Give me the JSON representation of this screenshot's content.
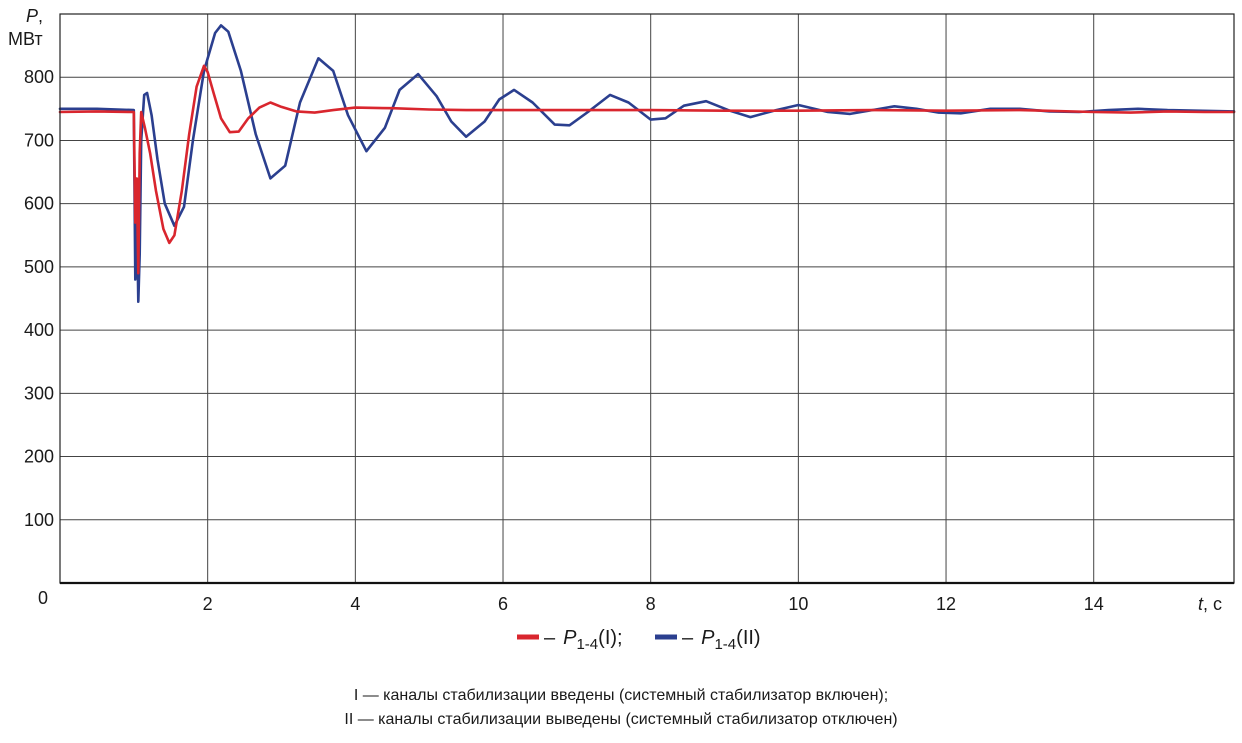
{
  "chart_data": {
    "type": "line",
    "xlabel_italic": "t",
    "xlabel_unit": ", с",
    "ylabel_italic": "P",
    "ylabel_comma": ",",
    "ylabel_unit": "МВт",
    "xlim": [
      0,
      15.9
    ],
    "ylim": [
      0,
      900
    ],
    "x_ticks": [
      0,
      2,
      4,
      6,
      8,
      10,
      12,
      14
    ],
    "y_ticks": [
      100,
      200,
      300,
      400,
      500,
      600,
      700,
      800
    ],
    "origin_label": "0",
    "grid": true,
    "series": [
      {
        "key": "I",
        "name": "P1-4(I)",
        "color": "#d9262e",
        "x": [
          0,
          0.5,
          1.0,
          1.02,
          1.04,
          1.06,
          1.08,
          1.1,
          1.15,
          1.22,
          1.3,
          1.4,
          1.48,
          1.55,
          1.65,
          1.75,
          1.85,
          1.95,
          2.0,
          2.08,
          2.18,
          2.3,
          2.42,
          2.55,
          2.7,
          2.85,
          3.0,
          3.2,
          3.45,
          3.7,
          4.0,
          4.5,
          5.0,
          5.5,
          6.0,
          7.0,
          8.0,
          9.0,
          10.0,
          11.0,
          12.0,
          13.0,
          14.0,
          14.5,
          15.0,
          15.5,
          15.9
        ],
        "y": [
          745,
          746,
          745,
          570,
          640,
          490,
          680,
          745,
          720,
          680,
          620,
          560,
          538,
          550,
          620,
          710,
          785,
          818,
          808,
          775,
          735,
          713,
          714,
          735,
          752,
          760,
          753,
          746,
          744,
          748,
          752,
          751,
          749,
          748,
          748,
          748,
          748,
          747,
          747,
          748,
          747,
          748,
          745,
          744,
          746,
          745,
          745
        ]
      },
      {
        "key": "II",
        "name": "P1-4(II)",
        "color": "#2b3f8f",
        "x": [
          0,
          0.5,
          1.0,
          1.02,
          1.04,
          1.06,
          1.08,
          1.1,
          1.14,
          1.18,
          1.24,
          1.32,
          1.42,
          1.55,
          1.68,
          1.8,
          1.95,
          2.1,
          2.18,
          2.28,
          2.45,
          2.65,
          2.85,
          3.05,
          3.25,
          3.5,
          3.7,
          3.9,
          4.15,
          4.4,
          4.6,
          4.85,
          5.1,
          5.3,
          5.5,
          5.75,
          5.95,
          6.15,
          6.4,
          6.7,
          6.9,
          7.15,
          7.45,
          7.7,
          8.0,
          8.2,
          8.45,
          8.75,
          9.05,
          9.35,
          9.7,
          10.0,
          10.4,
          10.7,
          11.0,
          11.3,
          11.6,
          11.9,
          12.2,
          12.6,
          13.0,
          13.4,
          13.8,
          14.2,
          14.6,
          15.0,
          15.4,
          15.9
        ],
        "y": [
          750,
          750,
          748,
          480,
          600,
          445,
          520,
          700,
          772,
          775,
          740,
          670,
          600,
          565,
          595,
          700,
          810,
          870,
          882,
          872,
          810,
          710,
          640,
          660,
          760,
          830,
          810,
          740,
          683,
          720,
          780,
          805,
          770,
          730,
          706,
          730,
          765,
          780,
          760,
          725,
          724,
          745,
          772,
          760,
          733,
          735,
          755,
          762,
          748,
          737,
          748,
          756,
          745,
          742,
          748,
          754,
          750,
          744,
          743,
          750,
          750,
          746,
          745,
          748,
          750,
          748,
          747,
          746
        ]
      }
    ]
  },
  "legend": {
    "dash": "–",
    "p_letter": "P",
    "subscript": "1-4",
    "item1_suffix": "(I);",
    "item2_suffix": "(II)"
  },
  "notes": {
    "line1": "I — каналы стабилизации введены (системный стабилизатор включен);",
    "line2": "II — каналы стабилизации выведены (системный стабилизатор отключен)"
  }
}
